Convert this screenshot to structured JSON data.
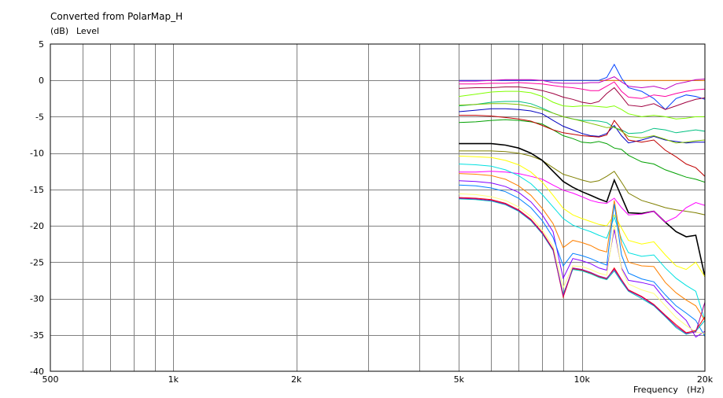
{
  "chart_data": {
    "type": "line",
    "title": "Converted from PolarMap_H",
    "ylabel_unit": "(dB)",
    "ylabel": "Level",
    "xlabel": "Frequency",
    "xlabel_unit": "(Hz)",
    "x_scale": "log",
    "xlim": [
      500,
      20000
    ],
    "ylim": [
      -40,
      5
    ],
    "y_ticks": [
      5,
      0,
      -5,
      -10,
      -15,
      -20,
      -25,
      -30,
      -35,
      -40
    ],
    "x_ticks": [
      {
        "value": 500,
        "label": "500"
      },
      {
        "value": 1000,
        "label": "1k"
      },
      {
        "value": 2000,
        "label": "2k"
      },
      {
        "value": 5000,
        "label": "5k"
      },
      {
        "value": 10000,
        "label": "10k"
      },
      {
        "value": 20000,
        "label": "20k"
      }
    ],
    "grid": true,
    "x": [
      5000,
      5500,
      6000,
      6500,
      7000,
      7500,
      8000,
      8500,
      9000,
      9500,
      10000,
      10500,
      11000,
      11500,
      12000,
      12500,
      13000,
      14000,
      15000,
      16000,
      17000,
      18000,
      19000,
      20000
    ],
    "series": [
      {
        "color": "#ff8000",
        "values": [
          0,
          0,
          0,
          0,
          0,
          0,
          0,
          0,
          0,
          0,
          0,
          0,
          0,
          0,
          0,
          0,
          0,
          0,
          0,
          0,
          0,
          0,
          0,
          0
        ]
      },
      {
        "color": "#0040ff",
        "values": [
          0,
          0,
          0,
          0,
          0,
          0,
          0,
          0,
          0,
          0,
          0,
          0,
          0,
          0.4,
          2.2,
          0.3,
          -1,
          -1.5,
          -2.5,
          -4,
          -2.5,
          -2,
          -2.2,
          -2.6
        ]
      },
      {
        "color": "#c000c0",
        "values": [
          -0.1,
          -0.1,
          0,
          0.1,
          0.1,
          0.1,
          0,
          -0.3,
          -0.4,
          -0.4,
          -0.4,
          -0.3,
          -0.3,
          0.1,
          0.5,
          -0.2,
          -0.8,
          -1,
          -0.8,
          -1.2,
          -0.5,
          -0.2,
          0.1,
          0.2
        ]
      },
      {
        "color": "#ff00a0",
        "values": [
          -0.5,
          -0.5,
          -0.4,
          -0.4,
          -0.3,
          -0.4,
          -0.5,
          -0.7,
          -0.9,
          -1,
          -1.2,
          -1.4,
          -1.4,
          -0.8,
          -0.2,
          -1.5,
          -2.3,
          -2.5,
          -2,
          -2.2,
          -1.8,
          -1.5,
          -1.3,
          -1.2
        ]
      },
      {
        "color": "#a00040",
        "values": [
          -1.1,
          -1,
          -1,
          -0.9,
          -0.9,
          -1.1,
          -1.4,
          -1.8,
          -2.3,
          -2.6,
          -3,
          -3.2,
          -2.9,
          -1.8,
          -1,
          -2.2,
          -3.4,
          -3.6,
          -3.2,
          -4,
          -3.5,
          -3,
          -2.6,
          -2.4
        ]
      },
      {
        "color": "#80ff00",
        "values": [
          -2.2,
          -1.9,
          -1.6,
          -1.5,
          -1.5,
          -1.7,
          -2.2,
          -3,
          -3.5,
          -3.6,
          -3.5,
          -3.5,
          -3.6,
          -3.7,
          -3.5,
          -4,
          -4.6,
          -5,
          -4.8,
          -5,
          -5.3,
          -5.2,
          -5,
          -5
        ]
      },
      {
        "color": "#00c080",
        "values": [
          -3.5,
          -3.3,
          -3,
          -2.9,
          -2.9,
          -3.2,
          -3.8,
          -4.5,
          -5,
          -5.3,
          -5.5,
          -5.5,
          -5.6,
          -5.8,
          -6.5,
          -6.8,
          -7.3,
          -7.2,
          -6.6,
          -6.8,
          -7.2,
          -7,
          -6.8,
          -7
        ]
      },
      {
        "color": "#0000c0",
        "values": [
          -4.3,
          -4.1,
          -3.9,
          -3.9,
          -4,
          -4.2,
          -4.6,
          -5.5,
          -6.3,
          -6.8,
          -7.3,
          -7.6,
          -7.7,
          -7.3,
          -6.2,
          -7.6,
          -8.6,
          -8.2,
          -7.7,
          -8.2,
          -8.4,
          -8.6,
          -8.5,
          -8.5
        ]
      },
      {
        "color": "#00a000",
        "values": [
          -5.8,
          -5.7,
          -5.5,
          -5.4,
          -5.5,
          -5.7,
          -6,
          -6.8,
          -7.6,
          -8,
          -8.5,
          -8.6,
          -8.4,
          -8.7,
          -9.3,
          -9.5,
          -10.3,
          -11.2,
          -11.5,
          -12.3,
          -12.8,
          -13.3,
          -13.6,
          -14
        ]
      },
      {
        "color": "#c00000",
        "values": [
          -4.8,
          -4.8,
          -4.9,
          -5.1,
          -5.3,
          -5.6,
          -6.2,
          -6.8,
          -7.2,
          -7.4,
          -7.6,
          -7.7,
          -7.8,
          -7.5,
          -5.5,
          -6.8,
          -8.2,
          -8.5,
          -8.2,
          -9.6,
          -10.5,
          -11.5,
          -12,
          -13.2
        ]
      },
      {
        "color": "#80c000",
        "values": [
          -3.4,
          -3.3,
          -3.2,
          -3.2,
          -3.3,
          -3.6,
          -4,
          -4.5,
          -5,
          -5.3,
          -5.6,
          -5.9,
          -6.2,
          -6.5,
          -6.4,
          -7,
          -7.7,
          -7.9,
          -7.6,
          -8.1,
          -8.6,
          -8.5,
          -8.3,
          -8.2
        ]
      },
      {
        "color": "#808000",
        "values": [
          -9.7,
          -9.7,
          -9.7,
          -9.8,
          -10,
          -10.4,
          -11,
          -12,
          -12.9,
          -13.3,
          -13.7,
          -14,
          -13.8,
          -13.2,
          -12.5,
          -14,
          -15.5,
          -16.5,
          -17,
          -17.5,
          -17.8,
          -18,
          -18.2,
          -18.5
        ]
      },
      {
        "color": "#000000",
        "values": [
          -8.7,
          -8.7,
          -8.7,
          -8.9,
          -9.3,
          -10,
          -11,
          -12.5,
          -13.9,
          -14.7,
          -15.3,
          -15.8,
          -16.3,
          -16.7,
          -13.7,
          -16,
          -18.2,
          -18.3,
          -18,
          -19.5,
          -20.8,
          -21.5,
          -21.3,
          -27
        ]
      },
      {
        "color": "#ff00ff",
        "values": [
          -12.6,
          -12.6,
          -12.5,
          -12.6,
          -12.8,
          -13.2,
          -13.6,
          -14.4,
          -15.1,
          -15.5,
          -16,
          -16.5,
          -16.8,
          -16.9,
          -16.2,
          -17.5,
          -18.5,
          -18.4,
          -18,
          -19.5,
          -18.8,
          -17.5,
          -16.8,
          -17.2
        ]
      },
      {
        "color": "#ffff00",
        "values": [
          -10.4,
          -10.5,
          -10.6,
          -11,
          -11.6,
          -12.6,
          -14,
          -15.8,
          -17.6,
          -18.5,
          -19,
          -19.4,
          -19.8,
          -20,
          -18.5,
          -20.3,
          -22,
          -22.5,
          -22.2,
          -24,
          -25.5,
          -26,
          -25,
          -27
        ]
      },
      {
        "color": "#00e0e0",
        "values": [
          -11.5,
          -11.6,
          -11.8,
          -12.3,
          -13.1,
          -14.2,
          -15.7,
          -17.4,
          -19,
          -19.9,
          -20.4,
          -20.8,
          -21.3,
          -21.7,
          -18.8,
          -21.8,
          -23.7,
          -24.2,
          -24,
          -25.8,
          -27.2,
          -28.2,
          -29,
          -33
        ]
      },
      {
        "color": "#ff8000",
        "values": [
          -12.8,
          -12.9,
          -13.1,
          -13.6,
          -14.5,
          -15.8,
          -17.6,
          -19.7,
          -23,
          -22,
          -22.3,
          -22.7,
          -23.3,
          -23.6,
          -16.5,
          -22.5,
          -25,
          -25.5,
          -25.6,
          -27.8,
          -29.2,
          -30.2,
          -31,
          -33
        ]
      },
      {
        "color": "#8000ff",
        "values": [
          -13.8,
          -13.9,
          -14.1,
          -14.6,
          -15.4,
          -16.7,
          -18.5,
          -20.8,
          -27.2,
          -24.5,
          -24.8,
          -25.2,
          -25.8,
          -26.1,
          -20.5,
          -25.8,
          -27.5,
          -27.8,
          -28.2,
          -30.2,
          -31.7,
          -33,
          -35.3,
          -34.5
        ]
      },
      {
        "color": "#0080ff",
        "values": [
          -14.4,
          -14.5,
          -14.8,
          -15.3,
          -16.2,
          -17.5,
          -19.3,
          -21.6,
          -25.5,
          -23.8,
          -24.1,
          -24.5,
          -25,
          -25.4,
          -17,
          -24,
          -26.5,
          -27.3,
          -27.7,
          -29.5,
          -31,
          -32,
          -33,
          -35.2
        ]
      },
      {
        "color": "#ffff80",
        "values": [
          -15.6,
          -15.7,
          -16,
          -16.5,
          -17.4,
          -18.7,
          -20.6,
          -22.8,
          -28.5,
          -25.5,
          -25.6,
          -26,
          -26.5,
          -26.8,
          -19.8,
          -26,
          -28,
          -28.8,
          -29.3,
          -31,
          -32.6,
          -33.7,
          -34.6,
          -34.8
        ]
      },
      {
        "color": "#ff0000",
        "values": [
          -16.1,
          -16.2,
          -16.4,
          -16.9,
          -17.8,
          -19.1,
          -20.9,
          -23.2,
          -29.8,
          -25.9,
          -26.1,
          -26.5,
          -27,
          -27.3,
          -25.8,
          -27.4,
          -28.8,
          -29.7,
          -30.8,
          -32.3,
          -33.6,
          -34.7,
          -34.4,
          -32.5
        ]
      },
      {
        "color": "#00c0c0",
        "values": [
          -16.3,
          -16.4,
          -16.6,
          -17.1,
          -18,
          -19.3,
          -21.1,
          -23.4,
          -29.4,
          -26,
          -26.2,
          -26.6,
          -27.1,
          -27.4,
          -26.2,
          -27.7,
          -29,
          -30,
          -31,
          -32.5,
          -34,
          -34.9,
          -34.5,
          -33
        ]
      },
      {
        "color": "#a000a0",
        "values": [
          -16.2,
          -16.3,
          -16.5,
          -17,
          -17.9,
          -19.2,
          -21,
          -23.3,
          -29.6,
          -25.8,
          -26,
          -26.4,
          -26.9,
          -27.2,
          -26,
          -27.5,
          -28.9,
          -29.8,
          -30.9,
          -32.4,
          -33.8,
          -34.8,
          -34.6,
          -30.5
        ]
      }
    ]
  }
}
